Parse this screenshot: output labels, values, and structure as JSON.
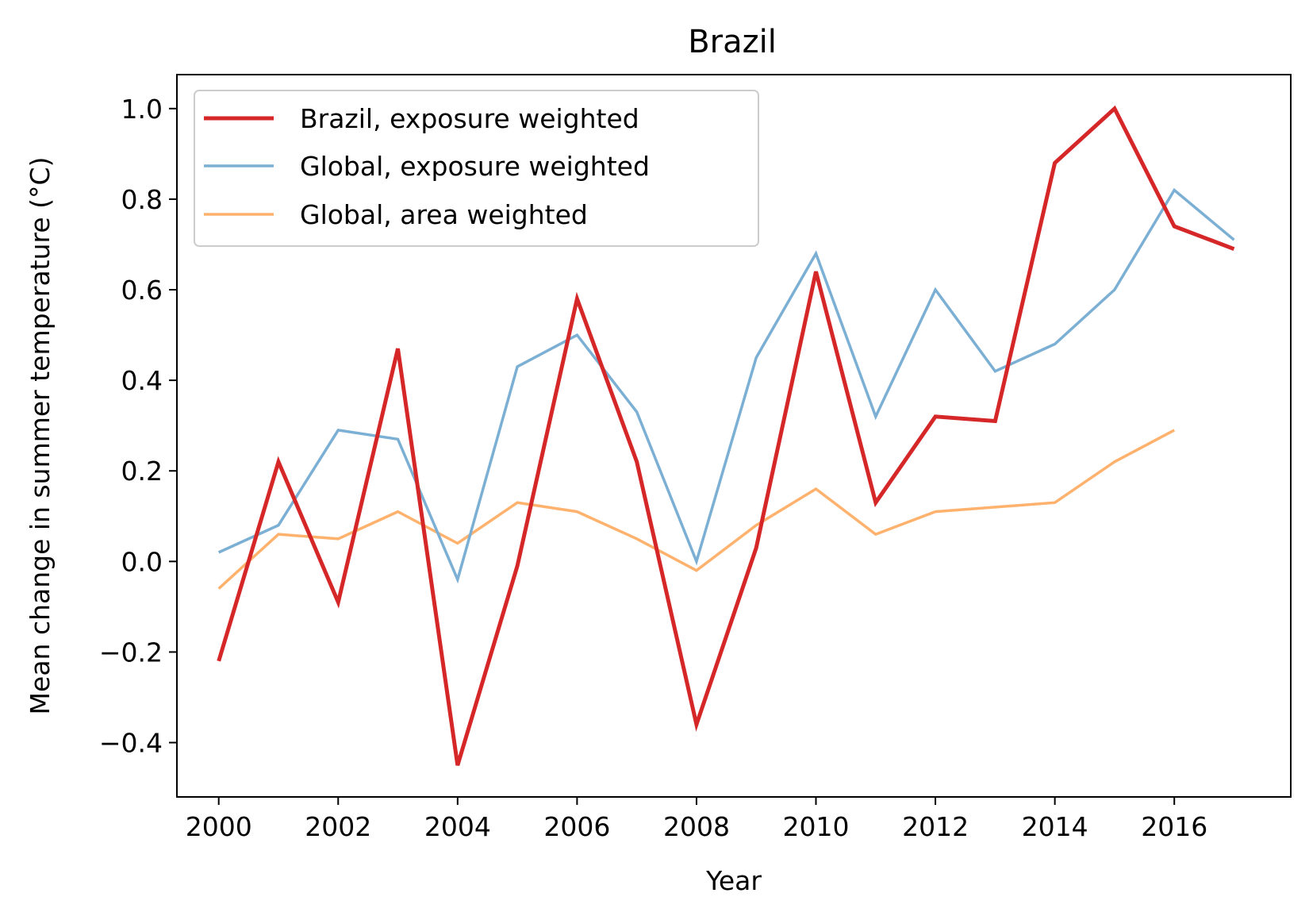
{
  "chart_data": {
    "type": "line",
    "title": "Brazil",
    "xlabel": "Year",
    "ylabel": "Mean change in summer temperature (°C)",
    "xlim": [
      1999.3,
      2017.95
    ],
    "ylim": [
      -0.52,
      1.075
    ],
    "xticks": [
      2000,
      2002,
      2004,
      2006,
      2008,
      2010,
      2012,
      2014,
      2016
    ],
    "xtick_labels": [
      "2000",
      "2002",
      "2004",
      "2006",
      "2008",
      "2010",
      "2012",
      "2014",
      "2016"
    ],
    "yticks": [
      -0.4,
      -0.2,
      0.0,
      0.2,
      0.4,
      0.6,
      0.8,
      1.0
    ],
    "ytick_labels": [
      "−0.4",
      "−0.2",
      "0.0",
      "0.2",
      "0.4",
      "0.6",
      "0.8",
      "1.0"
    ],
    "grid": false,
    "legend_position": "top-left",
    "series": [
      {
        "name": "Brazil, exposure weighted",
        "color": "#d62728",
        "x": [
          2000,
          2001,
          2002,
          2003,
          2004,
          2005,
          2006,
          2007,
          2008,
          2009,
          2010,
          2011,
          2012,
          2013,
          2014,
          2015,
          2016,
          2017
        ],
        "y": [
          -0.22,
          0.22,
          -0.09,
          0.47,
          -0.45,
          -0.01,
          0.58,
          0.22,
          -0.36,
          0.03,
          0.64,
          0.13,
          0.32,
          0.31,
          0.88,
          1.0,
          0.74,
          0.69
        ]
      },
      {
        "name": "Global, exposure weighted",
        "color": "#7bafd4",
        "x": [
          2000,
          2001,
          2002,
          2003,
          2004,
          2005,
          2006,
          2007,
          2008,
          2009,
          2010,
          2011,
          2012,
          2013,
          2014,
          2015,
          2016,
          2017
        ],
        "y": [
          0.02,
          0.08,
          0.29,
          0.27,
          -0.04,
          0.43,
          0.5,
          0.33,
          0.0,
          0.45,
          0.68,
          0.32,
          0.6,
          0.42,
          0.48,
          0.6,
          0.82,
          0.71
        ]
      },
      {
        "name": "Global, area weighted",
        "color": "#ffb26e",
        "x": [
          2000,
          2001,
          2002,
          2003,
          2004,
          2005,
          2006,
          2007,
          2008,
          2009,
          2010,
          2011,
          2012,
          2013,
          2014,
          2015,
          2016
        ],
        "y": [
          -0.06,
          0.06,
          0.05,
          0.11,
          0.04,
          0.13,
          0.11,
          0.05,
          -0.02,
          0.08,
          0.16,
          0.06,
          0.11,
          0.12,
          0.13,
          0.22,
          0.29
        ]
      }
    ]
  }
}
